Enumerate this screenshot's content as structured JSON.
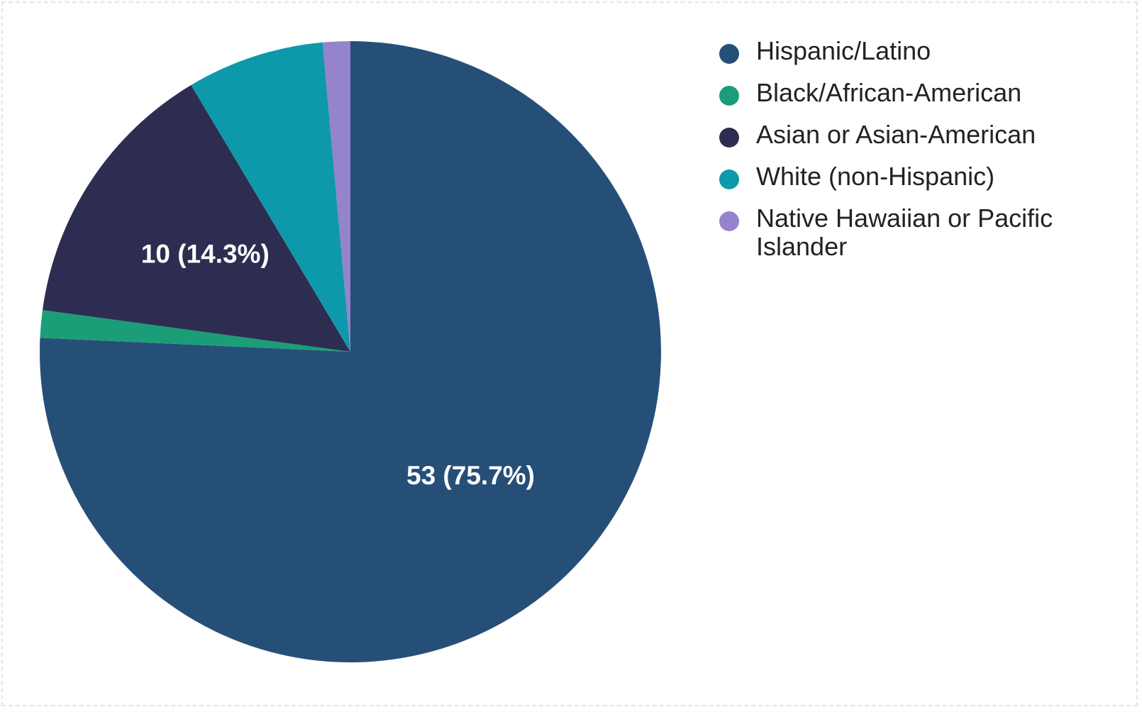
{
  "chart_data": {
    "type": "pie",
    "title": "",
    "slices": [
      {
        "label": "Hispanic/Latino",
        "value": 53,
        "percent": 75.7,
        "color": "#264f78",
        "data_label": "53 (75.7%)"
      },
      {
        "label": "Black/African-American",
        "value": 1,
        "percent": 1.4,
        "color": "#1b9e77",
        "data_label": ""
      },
      {
        "label": "Asian or Asian-American",
        "value": 10,
        "percent": 14.3,
        "color": "#2d2d52",
        "data_label": "10 (14.3%)"
      },
      {
        "label": "White (non-Hispanic)",
        "value": 5,
        "percent": 7.1,
        "color": "#0e99ab",
        "data_label": ""
      },
      {
        "label": "Native Hawaiian or Pacific Islander",
        "value": 1,
        "percent": 1.4,
        "color": "#9583cb",
        "data_label": ""
      }
    ],
    "legend_position": "right"
  }
}
